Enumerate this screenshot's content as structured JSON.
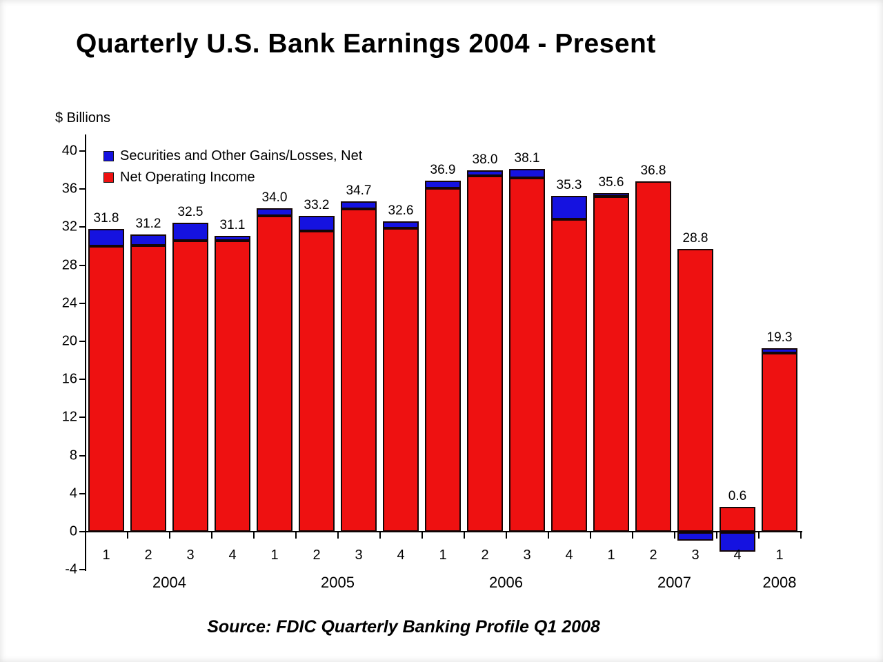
{
  "page": {
    "title": "Quarterly U.S. Bank Earnings 2004 - Present",
    "source": "Source:  FDIC Quarterly Banking Profile Q1 2008"
  },
  "legend": {
    "items": [
      {
        "label": "Securities and Other Gains/Losses, Net",
        "color": "#1512e0"
      },
      {
        "label": "Net Operating Income",
        "color": "#ee1111"
      }
    ]
  },
  "chart_data": {
    "type": "bar",
    "stacked": true,
    "title": "Quarterly U.S. Bank Earnings 2004 - Present",
    "ylabel": "$ Billions",
    "xlabel": "",
    "ylim": [
      -4,
      40
    ],
    "y_ticks": [
      40,
      36,
      32,
      28,
      24,
      20,
      16,
      12,
      8,
      4,
      0,
      -4
    ],
    "grid": false,
    "legend_position": "top-left-inside",
    "categories": [
      "2004 Q1",
      "2004 Q2",
      "2004 Q3",
      "2004 Q4",
      "2005 Q1",
      "2005 Q2",
      "2005 Q3",
      "2005 Q4",
      "2006 Q1",
      "2006 Q2",
      "2006 Q3",
      "2006 Q4",
      "2007 Q1",
      "2007 Q2",
      "2007 Q3",
      "2007 Q4",
      "2008 Q1"
    ],
    "quarter_labels": [
      "1",
      "2",
      "3",
      "4",
      "1",
      "2",
      "3",
      "4",
      "1",
      "2",
      "3",
      "4",
      "1",
      "2",
      "3",
      "4",
      "1"
    ],
    "year_groups": [
      {
        "label": "2004",
        "start": 0,
        "count": 4
      },
      {
        "label": "2005",
        "start": 4,
        "count": 4
      },
      {
        "label": "2006",
        "start": 8,
        "count": 4
      },
      {
        "label": "2007",
        "start": 12,
        "count": 4
      },
      {
        "label": "2008",
        "start": 16,
        "count": 1
      }
    ],
    "series": [
      {
        "name": "Net Operating Income",
        "color": "#ee1111",
        "values": [
          30.0,
          30.1,
          30.6,
          30.6,
          33.2,
          31.6,
          33.9,
          31.9,
          36.1,
          37.4,
          37.2,
          32.8,
          35.2,
          36.8,
          29.7,
          2.6,
          18.8
        ]
      },
      {
        "name": "Securities and Other Gains/Losses, Net",
        "color": "#1512e0",
        "values": [
          1.8,
          1.1,
          1.9,
          0.5,
          0.8,
          1.6,
          0.8,
          0.7,
          0.8,
          0.6,
          0.9,
          2.5,
          0.4,
          0.0,
          -0.9,
          -2.0,
          0.5
        ]
      }
    ],
    "totals": [
      31.8,
      31.2,
      32.5,
      31.1,
      34.0,
      33.2,
      34.7,
      32.6,
      36.9,
      38.0,
      38.1,
      35.3,
      35.6,
      36.8,
      28.8,
      0.6,
      19.3
    ],
    "bar_labels": [
      "31.8",
      "31.2",
      "32.5",
      "31.1",
      "34.0",
      "33.2",
      "34.7",
      "32.6",
      "36.9",
      "38.0",
      "38.1",
      "35.3",
      "35.6",
      "36.8",
      "28.8",
      "0.6",
      "19.3"
    ]
  }
}
